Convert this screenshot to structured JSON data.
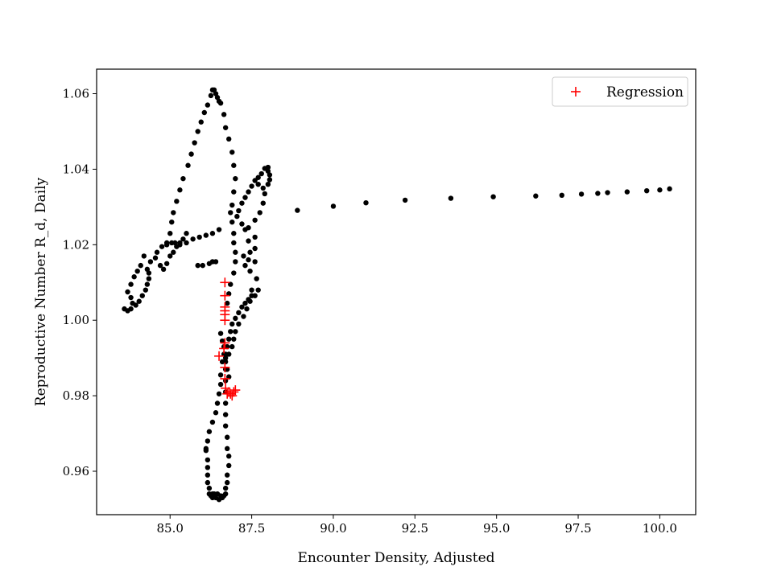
{
  "chart_data": {
    "type": "scatter",
    "xlabel": "Encounter Density, Adjusted",
    "ylabel": "Reproductive Number R_d, Daily",
    "xlim": [
      82.75,
      101.1
    ],
    "ylim": [
      0.9485,
      1.0665
    ],
    "xticks": [
      85.0,
      87.5,
      90.0,
      92.5,
      95.0,
      97.5,
      100.0
    ],
    "xtick_labels": [
      "85.0",
      "87.5",
      "90.0",
      "92.5",
      "95.0",
      "97.5",
      "100.0"
    ],
    "yticks": [
      0.96,
      0.98,
      1.0,
      1.02,
      1.04,
      1.06
    ],
    "ytick_labels": [
      "0.96",
      "0.98",
      "1.00",
      "1.02",
      "1.04",
      "1.06"
    ],
    "grid": false,
    "legend": {
      "placement": "top-right",
      "entries": [
        "Regression"
      ]
    },
    "series": [
      {
        "marker": "dot",
        "color": "#000000",
        "points": [
          [
            100.3,
            1.0348
          ],
          [
            100.0,
            1.0345
          ],
          [
            99.6,
            1.0343
          ],
          [
            99.0,
            1.034
          ],
          [
            98.4,
            1.0338
          ],
          [
            98.1,
            1.0336
          ],
          [
            97.6,
            1.0334
          ],
          [
            97.0,
            1.0331
          ],
          [
            96.2,
            1.0329
          ],
          [
            94.9,
            1.0327
          ],
          [
            93.6,
            1.0323
          ],
          [
            92.2,
            1.0318
          ],
          [
            91.0,
            1.0311
          ],
          [
            90.0,
            1.0302
          ],
          [
            88.9,
            1.0291
          ],
          [
            88.0,
            1.0405
          ],
          [
            88.0,
            1.0395
          ],
          [
            88.05,
            1.0385
          ],
          [
            88.05,
            1.0372
          ],
          [
            88.0,
            1.036
          ],
          [
            87.9,
            1.0402
          ],
          [
            87.8,
            1.0388
          ],
          [
            87.7,
            1.0378
          ],
          [
            87.6,
            1.037
          ],
          [
            87.5,
            1.0355
          ],
          [
            87.4,
            1.034
          ],
          [
            87.3,
            1.0325
          ],
          [
            87.2,
            1.031
          ],
          [
            87.1,
            1.029
          ],
          [
            87.05,
            1.0275
          ],
          [
            87.2,
            1.0255
          ],
          [
            87.4,
            1.0245
          ],
          [
            87.6,
            1.0265
          ],
          [
            87.75,
            1.0285
          ],
          [
            87.85,
            1.031
          ],
          [
            87.9,
            1.0335
          ],
          [
            87.85,
            1.035
          ],
          [
            87.7,
            1.036
          ],
          [
            87.3,
            1.024
          ],
          [
            87.4,
            1.021
          ],
          [
            87.45,
            1.018
          ],
          [
            87.4,
            1.016
          ],
          [
            87.25,
            1.017
          ],
          [
            87.3,
            1.0145
          ],
          [
            87.45,
            1.013
          ],
          [
            87.6,
            1.0155
          ],
          [
            87.6,
            1.019
          ],
          [
            87.6,
            1.022
          ],
          [
            87.65,
            1.011
          ],
          [
            87.7,
            1.008
          ],
          [
            87.6,
            1.0065
          ],
          [
            87.4,
            1.0055
          ],
          [
            87.3,
            1.0045
          ],
          [
            87.2,
            1.0035
          ],
          [
            87.1,
            1.002
          ],
          [
            87.0,
            1.0005
          ],
          [
            86.9,
            0.999
          ],
          [
            86.85,
            0.997
          ],
          [
            86.8,
            0.995
          ],
          [
            86.75,
            0.993
          ],
          [
            86.7,
            0.991
          ],
          [
            86.7,
            0.989
          ],
          [
            86.75,
            0.987
          ],
          [
            86.8,
            0.985
          ],
          [
            87.5,
            1.008
          ],
          [
            87.5,
            1.0065
          ],
          [
            87.45,
            1.005
          ],
          [
            87.35,
            1.003
          ],
          [
            87.25,
            1.001
          ],
          [
            87.1,
            0.999
          ],
          [
            87.0,
            0.997
          ],
          [
            86.95,
            0.995
          ],
          [
            86.9,
            0.993
          ],
          [
            86.8,
            0.991
          ],
          [
            86.3,
            1.061
          ],
          [
            86.35,
            1.061
          ],
          [
            86.4,
            1.06
          ],
          [
            86.45,
            1.059
          ],
          [
            86.5,
            1.058
          ],
          [
            86.55,
            1.0575
          ],
          [
            86.25,
            1.0595
          ],
          [
            86.15,
            1.057
          ],
          [
            86.05,
            1.055
          ],
          [
            85.95,
            1.0525
          ],
          [
            85.85,
            1.05
          ],
          [
            85.75,
            1.047
          ],
          [
            85.65,
            1.044
          ],
          [
            85.55,
            1.041
          ],
          [
            85.4,
            1.0375
          ],
          [
            85.3,
            1.0345
          ],
          [
            85.2,
            1.0315
          ],
          [
            85.1,
            1.0285
          ],
          [
            85.05,
            1.026
          ],
          [
            85.0,
            1.023
          ],
          [
            84.9,
            1.0205
          ],
          [
            86.65,
            1.0545
          ],
          [
            86.7,
            1.051
          ],
          [
            86.8,
            1.048
          ],
          [
            86.9,
            1.0445
          ],
          [
            86.95,
            1.041
          ],
          [
            87.0,
            1.0375
          ],
          [
            86.95,
            1.034
          ],
          [
            86.9,
            1.0305
          ],
          [
            86.85,
            1.0285
          ],
          [
            86.9,
            1.026
          ],
          [
            86.95,
            1.023
          ],
          [
            86.95,
            1.0205
          ],
          [
            87.0,
            1.018
          ],
          [
            87.0,
            1.0155
          ],
          [
            86.95,
            1.0125
          ],
          [
            86.85,
            1.0095
          ],
          [
            86.8,
            1.007
          ],
          [
            86.75,
            1.0045
          ],
          [
            84.4,
            1.0155
          ],
          [
            84.55,
            1.0165
          ],
          [
            84.6,
            1.018
          ],
          [
            84.75,
            1.0195
          ],
          [
            84.9,
            1.02
          ],
          [
            85.05,
            1.0205
          ],
          [
            85.15,
            1.0205
          ],
          [
            85.3,
            1.02
          ],
          [
            85.5,
            1.0205
          ],
          [
            85.7,
            1.0215
          ],
          [
            85.9,
            1.022
          ],
          [
            86.1,
            1.0225
          ],
          [
            86.3,
            1.023
          ],
          [
            86.5,
            1.024
          ],
          [
            84.7,
            1.0145
          ],
          [
            84.8,
            1.0135
          ],
          [
            84.9,
            1.015
          ],
          [
            85.0,
            1.017
          ],
          [
            85.1,
            1.018
          ],
          [
            85.2,
            1.0195
          ],
          [
            85.3,
            1.0205
          ],
          [
            85.4,
            1.0215
          ],
          [
            85.5,
            1.023
          ],
          [
            83.7,
            1.0075
          ],
          [
            83.8,
            1.0095
          ],
          [
            83.9,
            1.0115
          ],
          [
            84.0,
            1.013
          ],
          [
            84.1,
            1.0145
          ],
          [
            84.2,
            1.017
          ],
          [
            83.6,
            1.003
          ],
          [
            83.7,
            1.0025
          ],
          [
            83.8,
            1.003
          ],
          [
            83.85,
            1.0045
          ],
          [
            83.8,
            1.006
          ],
          [
            83.95,
            1.004
          ],
          [
            84.05,
            1.005
          ],
          [
            84.15,
            1.0065
          ],
          [
            84.25,
            1.008
          ],
          [
            84.3,
            1.0095
          ],
          [
            84.35,
            1.011
          ],
          [
            84.35,
            1.0125
          ],
          [
            84.3,
            1.0135
          ],
          [
            85.85,
            1.0145
          ],
          [
            86.0,
            1.0145
          ],
          [
            86.2,
            1.015
          ],
          [
            86.3,
            1.0155
          ],
          [
            86.4,
            1.0155
          ],
          [
            86.55,
            0.9965
          ],
          [
            86.6,
            0.9945
          ],
          [
            86.65,
            0.993
          ],
          [
            86.65,
            0.991
          ],
          [
            86.6,
            0.989
          ],
          [
            86.55,
            0.9855
          ],
          [
            86.55,
            0.983
          ],
          [
            86.5,
            0.9805
          ],
          [
            86.45,
            0.978
          ],
          [
            86.4,
            0.9755
          ],
          [
            86.3,
            0.973
          ],
          [
            86.2,
            0.9705
          ],
          [
            86.15,
            0.968
          ],
          [
            86.1,
            0.966
          ],
          [
            86.1,
            0.9655
          ],
          [
            86.15,
            0.963
          ],
          [
            86.15,
            0.961
          ],
          [
            86.15,
            0.959
          ],
          [
            86.15,
            0.957
          ],
          [
            86.2,
            0.9555
          ],
          [
            86.2,
            0.954
          ],
          [
            86.25,
            0.9535
          ],
          [
            86.3,
            0.953
          ],
          [
            86.4,
            0.953
          ],
          [
            86.5,
            0.9525
          ],
          [
            86.6,
            0.953
          ],
          [
            86.65,
            0.9535
          ],
          [
            86.7,
            0.954
          ],
          [
            86.7,
            0.9555
          ],
          [
            86.75,
            0.957
          ],
          [
            86.75,
            0.959
          ],
          [
            86.8,
            0.9615
          ],
          [
            86.8,
            0.964
          ],
          [
            86.75,
            0.966
          ],
          [
            86.75,
            0.969
          ],
          [
            86.7,
            0.972
          ],
          [
            86.7,
            0.975
          ],
          [
            86.7,
            0.978
          ],
          [
            86.7,
            0.981
          ],
          [
            86.7,
            0.984
          ],
          [
            86.7,
            0.987
          ],
          [
            86.7,
            0.99
          ],
          [
            86.3,
            0.954
          ],
          [
            86.35,
            0.954
          ],
          [
            86.45,
            0.954
          ],
          [
            86.55,
            0.9535
          ]
        ]
      },
      {
        "name": "Regression",
        "marker": "plus",
        "color": "#ff0000",
        "points": [
          [
            86.68,
            1.01
          ],
          [
            86.68,
            1.0065
          ],
          [
            86.68,
            1.0035
          ],
          [
            86.68,
            1.0025
          ],
          [
            86.68,
            1.0015
          ],
          [
            86.68,
            1.0
          ],
          [
            86.68,
            0.994
          ],
          [
            86.65,
            0.9925
          ],
          [
            86.5,
            0.9905
          ],
          [
            86.68,
            0.9875
          ],
          [
            86.68,
            0.9845
          ],
          [
            86.7,
            0.982
          ],
          [
            86.8,
            0.981
          ],
          [
            86.85,
            0.9805
          ],
          [
            86.95,
            0.981
          ],
          [
            87.0,
            0.9815
          ],
          [
            86.9,
            0.98
          ],
          [
            86.75,
            0.9805
          ]
        ]
      }
    ]
  }
}
